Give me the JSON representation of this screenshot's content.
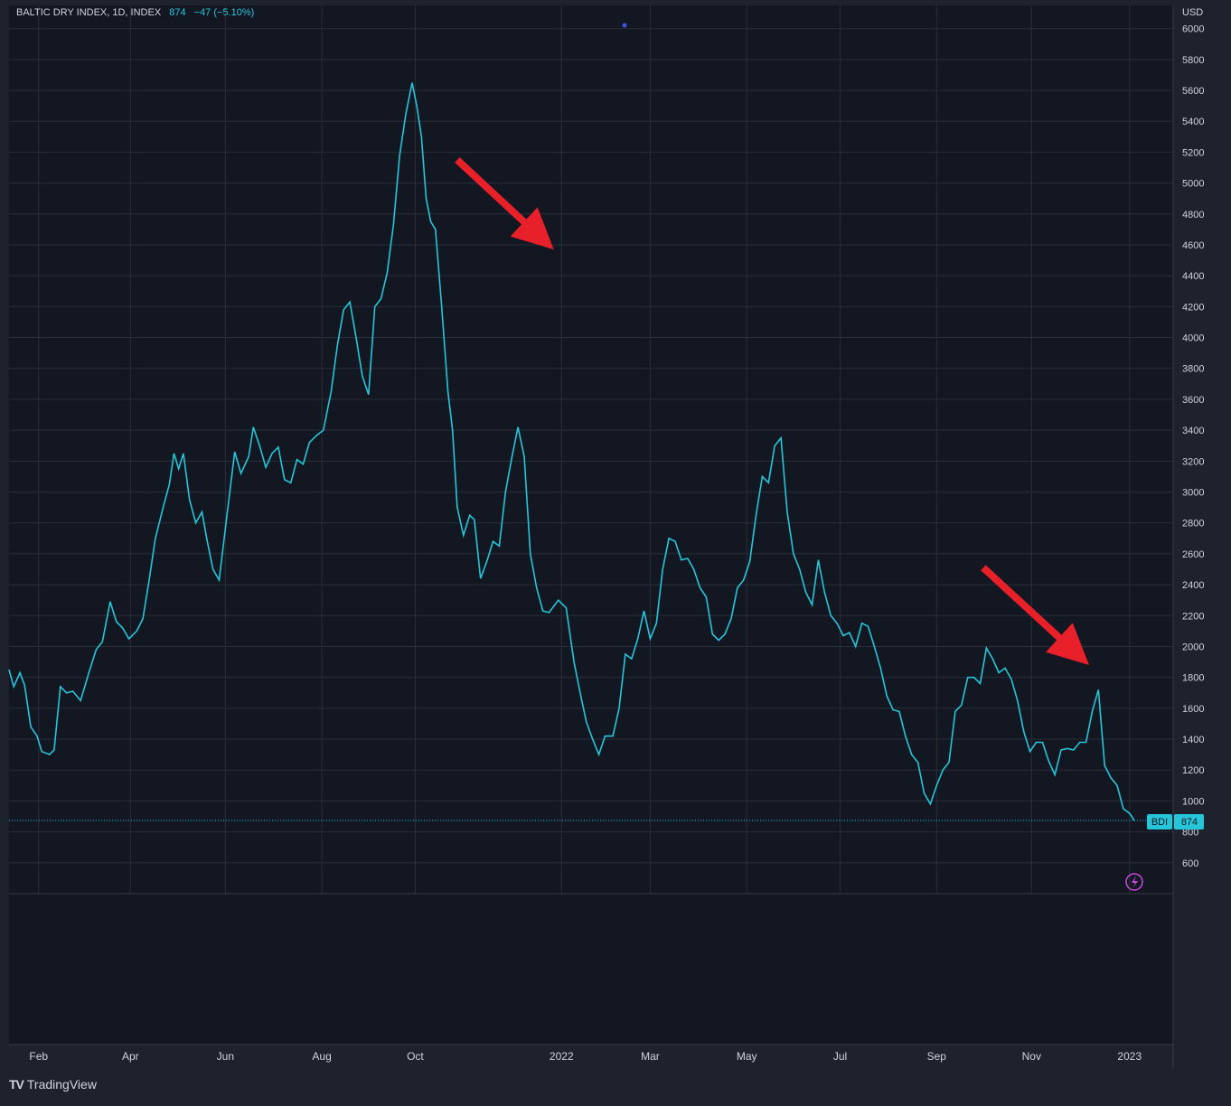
{
  "legend": {
    "title": "BALTIC DRY INDEX, 1D, INDEX",
    "last": "874",
    "change": "−47 (−5.10%)"
  },
  "footer": {
    "brand": "TradingView",
    "logo_icon": "tradingview-logo-icon"
  },
  "colors": {
    "line": "#26c6da",
    "bg": "#131722",
    "grid": "#2a2e39",
    "text": "#d1d4dc",
    "arrow": "#e8202a"
  },
  "price_badge": {
    "symbol": "BDI",
    "value": "874"
  },
  "chart_data": {
    "type": "line",
    "title": "BALTIC DRY INDEX, 1D, INDEX",
    "ylabel": "USD",
    "yticks": [
      600,
      800,
      1000,
      1200,
      1400,
      1600,
      1800,
      2000,
      2200,
      2400,
      2600,
      2800,
      3000,
      3200,
      3400,
      3600,
      3800,
      4000,
      4200,
      4400,
      4600,
      4800,
      5000,
      5200,
      5400,
      5600,
      5800,
      6000
    ],
    "ylim": [
      400,
      6150
    ],
    "xlim": [
      "2021-01-13",
      "2023-01-31"
    ],
    "xticks": [
      {
        "label": "Feb",
        "date": "2021-02-01"
      },
      {
        "label": "Apr",
        "date": "2021-04-01"
      },
      {
        "label": "Jun",
        "date": "2021-06-01"
      },
      {
        "label": "Aug",
        "date": "2021-08-02"
      },
      {
        "label": "Oct",
        "date": "2021-10-01"
      },
      {
        "label": "2022",
        "date": "2022-01-03"
      },
      {
        "label": "Mar",
        "date": "2022-03-01"
      },
      {
        "label": "May",
        "date": "2022-05-02"
      },
      {
        "label": "Jul",
        "date": "2022-07-01"
      },
      {
        "label": "Sep",
        "date": "2022-09-01"
      },
      {
        "label": "Nov",
        "date": "2022-11-01"
      },
      {
        "label": "2023",
        "date": "2023-01-03"
      }
    ],
    "grid": true,
    "series": [
      {
        "values": [
          [
            "2021-01-13",
            1850
          ],
          [
            "2021-01-16",
            1740
          ],
          [
            "2021-01-20",
            1830
          ],
          [
            "2021-01-23",
            1750
          ],
          [
            "2021-01-27",
            1480
          ],
          [
            "2021-01-31",
            1420
          ],
          [
            "2021-02-03",
            1320
          ],
          [
            "2021-02-08",
            1300
          ],
          [
            "2021-02-11",
            1330
          ],
          [
            "2021-02-15",
            1740
          ],
          [
            "2021-02-19",
            1700
          ],
          [
            "2021-02-23",
            1710
          ],
          [
            "2021-02-28",
            1650
          ],
          [
            "2021-03-05",
            1820
          ],
          [
            "2021-03-10",
            1980
          ],
          [
            "2021-03-14",
            2030
          ],
          [
            "2021-03-19",
            2290
          ],
          [
            "2021-03-23",
            2160
          ],
          [
            "2021-03-27",
            2120
          ],
          [
            "2021-03-31",
            2050
          ],
          [
            "2021-04-05",
            2100
          ],
          [
            "2021-04-09",
            2180
          ],
          [
            "2021-04-13",
            2430
          ],
          [
            "2021-04-17",
            2700
          ],
          [
            "2021-04-22",
            2900
          ],
          [
            "2021-04-26",
            3050
          ],
          [
            "2021-04-29",
            3250
          ],
          [
            "2021-05-02",
            3150
          ],
          [
            "2021-05-05",
            3250
          ],
          [
            "2021-05-09",
            2950
          ],
          [
            "2021-05-13",
            2800
          ],
          [
            "2021-05-17",
            2870
          ],
          [
            "2021-05-20",
            2700
          ],
          [
            "2021-05-24",
            2500
          ],
          [
            "2021-05-28",
            2430
          ],
          [
            "2021-06-02",
            2850
          ],
          [
            "2021-06-07",
            3260
          ],
          [
            "2021-06-11",
            3120
          ],
          [
            "2021-06-16",
            3230
          ],
          [
            "2021-06-19",
            3420
          ],
          [
            "2021-06-23",
            3300
          ],
          [
            "2021-06-27",
            3160
          ],
          [
            "2021-07-01",
            3250
          ],
          [
            "2021-07-05",
            3290
          ],
          [
            "2021-07-09",
            3080
          ],
          [
            "2021-07-13",
            3060
          ],
          [
            "2021-07-17",
            3210
          ],
          [
            "2021-07-21",
            3180
          ],
          [
            "2021-07-25",
            3320
          ],
          [
            "2021-07-30",
            3370
          ],
          [
            "2021-08-03",
            3400
          ],
          [
            "2021-08-08",
            3650
          ],
          [
            "2021-08-12",
            3950
          ],
          [
            "2021-08-16",
            4180
          ],
          [
            "2021-08-20",
            4230
          ],
          [
            "2021-08-24",
            4000
          ],
          [
            "2021-08-28",
            3750
          ],
          [
            "2021-09-01",
            3630
          ],
          [
            "2021-09-05",
            4200
          ],
          [
            "2021-09-09",
            4250
          ],
          [
            "2021-09-13",
            4420
          ],
          [
            "2021-09-17",
            4730
          ],
          [
            "2021-09-21",
            5180
          ],
          [
            "2021-09-25",
            5450
          ],
          [
            "2021-09-29",
            5650
          ],
          [
            "2021-10-02",
            5500
          ],
          [
            "2021-10-05",
            5300
          ],
          [
            "2021-10-08",
            4900
          ],
          [
            "2021-10-11",
            4750
          ],
          [
            "2021-10-14",
            4700
          ],
          [
            "2021-10-18",
            4200
          ],
          [
            "2021-10-22",
            3650
          ],
          [
            "2021-10-25",
            3400
          ],
          [
            "2021-10-28",
            2900
          ],
          [
            "2021-11-01",
            2720
          ],
          [
            "2021-11-05",
            2850
          ],
          [
            "2021-11-08",
            2820
          ],
          [
            "2021-11-12",
            2440
          ],
          [
            "2021-11-16",
            2550
          ],
          [
            "2021-11-20",
            2680
          ],
          [
            "2021-11-24",
            2650
          ],
          [
            "2021-11-28",
            3000
          ],
          [
            "2021-12-02",
            3220
          ],
          [
            "2021-12-06",
            3420
          ],
          [
            "2021-12-10",
            3230
          ],
          [
            "2021-12-14",
            2600
          ],
          [
            "2021-12-18",
            2380
          ],
          [
            "2021-12-22",
            2230
          ],
          [
            "2021-12-26",
            2220
          ],
          [
            "2022-01-01",
            2300
          ],
          [
            "2022-01-06",
            2250
          ],
          [
            "2022-01-11",
            1900
          ],
          [
            "2022-01-15",
            1700
          ],
          [
            "2022-01-19",
            1510
          ],
          [
            "2022-01-23",
            1400
          ],
          [
            "2022-01-27",
            1300
          ],
          [
            "2022-01-31",
            1420
          ],
          [
            "2022-02-05",
            1420
          ],
          [
            "2022-02-09",
            1600
          ],
          [
            "2022-02-13",
            1950
          ],
          [
            "2022-02-17",
            1920
          ],
          [
            "2022-02-21",
            2050
          ],
          [
            "2022-02-25",
            2230
          ],
          [
            "2022-03-01",
            2050
          ],
          [
            "2022-03-05",
            2150
          ],
          [
            "2022-03-09",
            2500
          ],
          [
            "2022-03-13",
            2700
          ],
          [
            "2022-03-17",
            2680
          ],
          [
            "2022-03-21",
            2560
          ],
          [
            "2022-03-25",
            2570
          ],
          [
            "2022-03-29",
            2500
          ],
          [
            "2022-04-02",
            2380
          ],
          [
            "2022-04-06",
            2320
          ],
          [
            "2022-04-10",
            2080
          ],
          [
            "2022-04-14",
            2040
          ],
          [
            "2022-04-18",
            2080
          ],
          [
            "2022-04-22",
            2180
          ],
          [
            "2022-04-26",
            2380
          ],
          [
            "2022-04-30",
            2430
          ],
          [
            "2022-05-04",
            2550
          ],
          [
            "2022-05-08",
            2850
          ],
          [
            "2022-05-12",
            3100
          ],
          [
            "2022-05-16",
            3060
          ],
          [
            "2022-05-20",
            3300
          ],
          [
            "2022-05-24",
            3350
          ],
          [
            "2022-05-28",
            2870
          ],
          [
            "2022-06-01",
            2600
          ],
          [
            "2022-06-05",
            2500
          ],
          [
            "2022-06-09",
            2350
          ],
          [
            "2022-06-13",
            2270
          ],
          [
            "2022-06-17",
            2560
          ],
          [
            "2022-06-21",
            2350
          ],
          [
            "2022-06-25",
            2200
          ],
          [
            "2022-06-29",
            2150
          ],
          [
            "2022-07-03",
            2070
          ],
          [
            "2022-07-07",
            2090
          ],
          [
            "2022-07-11",
            2000
          ],
          [
            "2022-07-15",
            2150
          ],
          [
            "2022-07-19",
            2130
          ],
          [
            "2022-07-23",
            2000
          ],
          [
            "2022-07-27",
            1860
          ],
          [
            "2022-07-31",
            1680
          ],
          [
            "2022-08-04",
            1590
          ],
          [
            "2022-08-08",
            1580
          ],
          [
            "2022-08-12",
            1420
          ],
          [
            "2022-08-16",
            1300
          ],
          [
            "2022-08-20",
            1250
          ],
          [
            "2022-08-24",
            1050
          ],
          [
            "2022-08-28",
            980
          ],
          [
            "2022-09-01",
            1100
          ],
          [
            "2022-09-05",
            1200
          ],
          [
            "2022-09-09",
            1250
          ],
          [
            "2022-09-13",
            1580
          ],
          [
            "2022-09-17",
            1620
          ],
          [
            "2022-09-21",
            1800
          ],
          [
            "2022-09-25",
            1800
          ],
          [
            "2022-09-29",
            1760
          ],
          [
            "2022-10-03",
            1990
          ],
          [
            "2022-10-07",
            1920
          ],
          [
            "2022-10-11",
            1830
          ],
          [
            "2022-10-15",
            1860
          ],
          [
            "2022-10-19",
            1790
          ],
          [
            "2022-10-23",
            1650
          ],
          [
            "2022-10-27",
            1450
          ],
          [
            "2022-10-31",
            1320
          ],
          [
            "2022-11-04",
            1380
          ],
          [
            "2022-11-08",
            1380
          ],
          [
            "2022-11-12",
            1260
          ],
          [
            "2022-11-16",
            1170
          ],
          [
            "2022-11-20",
            1330
          ],
          [
            "2022-11-24",
            1340
          ],
          [
            "2022-11-28",
            1330
          ],
          [
            "2022-12-02",
            1380
          ],
          [
            "2022-12-06",
            1380
          ],
          [
            "2022-12-10",
            1580
          ],
          [
            "2022-12-14",
            1720
          ],
          [
            "2022-12-18",
            1230
          ],
          [
            "2022-12-22",
            1150
          ],
          [
            "2022-12-26",
            1100
          ],
          [
            "2022-12-30",
            950
          ],
          [
            "2023-01-03",
            920
          ],
          [
            "2023-01-06",
            874
          ]
        ]
      }
    ],
    "annotations": [
      {
        "type": "arrow",
        "direction": "down-right",
        "color": "#e8202a",
        "from": [
          "2021-10-28",
          5150
        ],
        "to": [
          "2021-12-29",
          4570
        ]
      },
      {
        "type": "arrow",
        "direction": "down-right",
        "color": "#e8202a",
        "from": [
          "2022-10-01",
          2510
        ],
        "to": [
          "2022-12-08",
          1880
        ]
      }
    ],
    "last_value": 874
  }
}
